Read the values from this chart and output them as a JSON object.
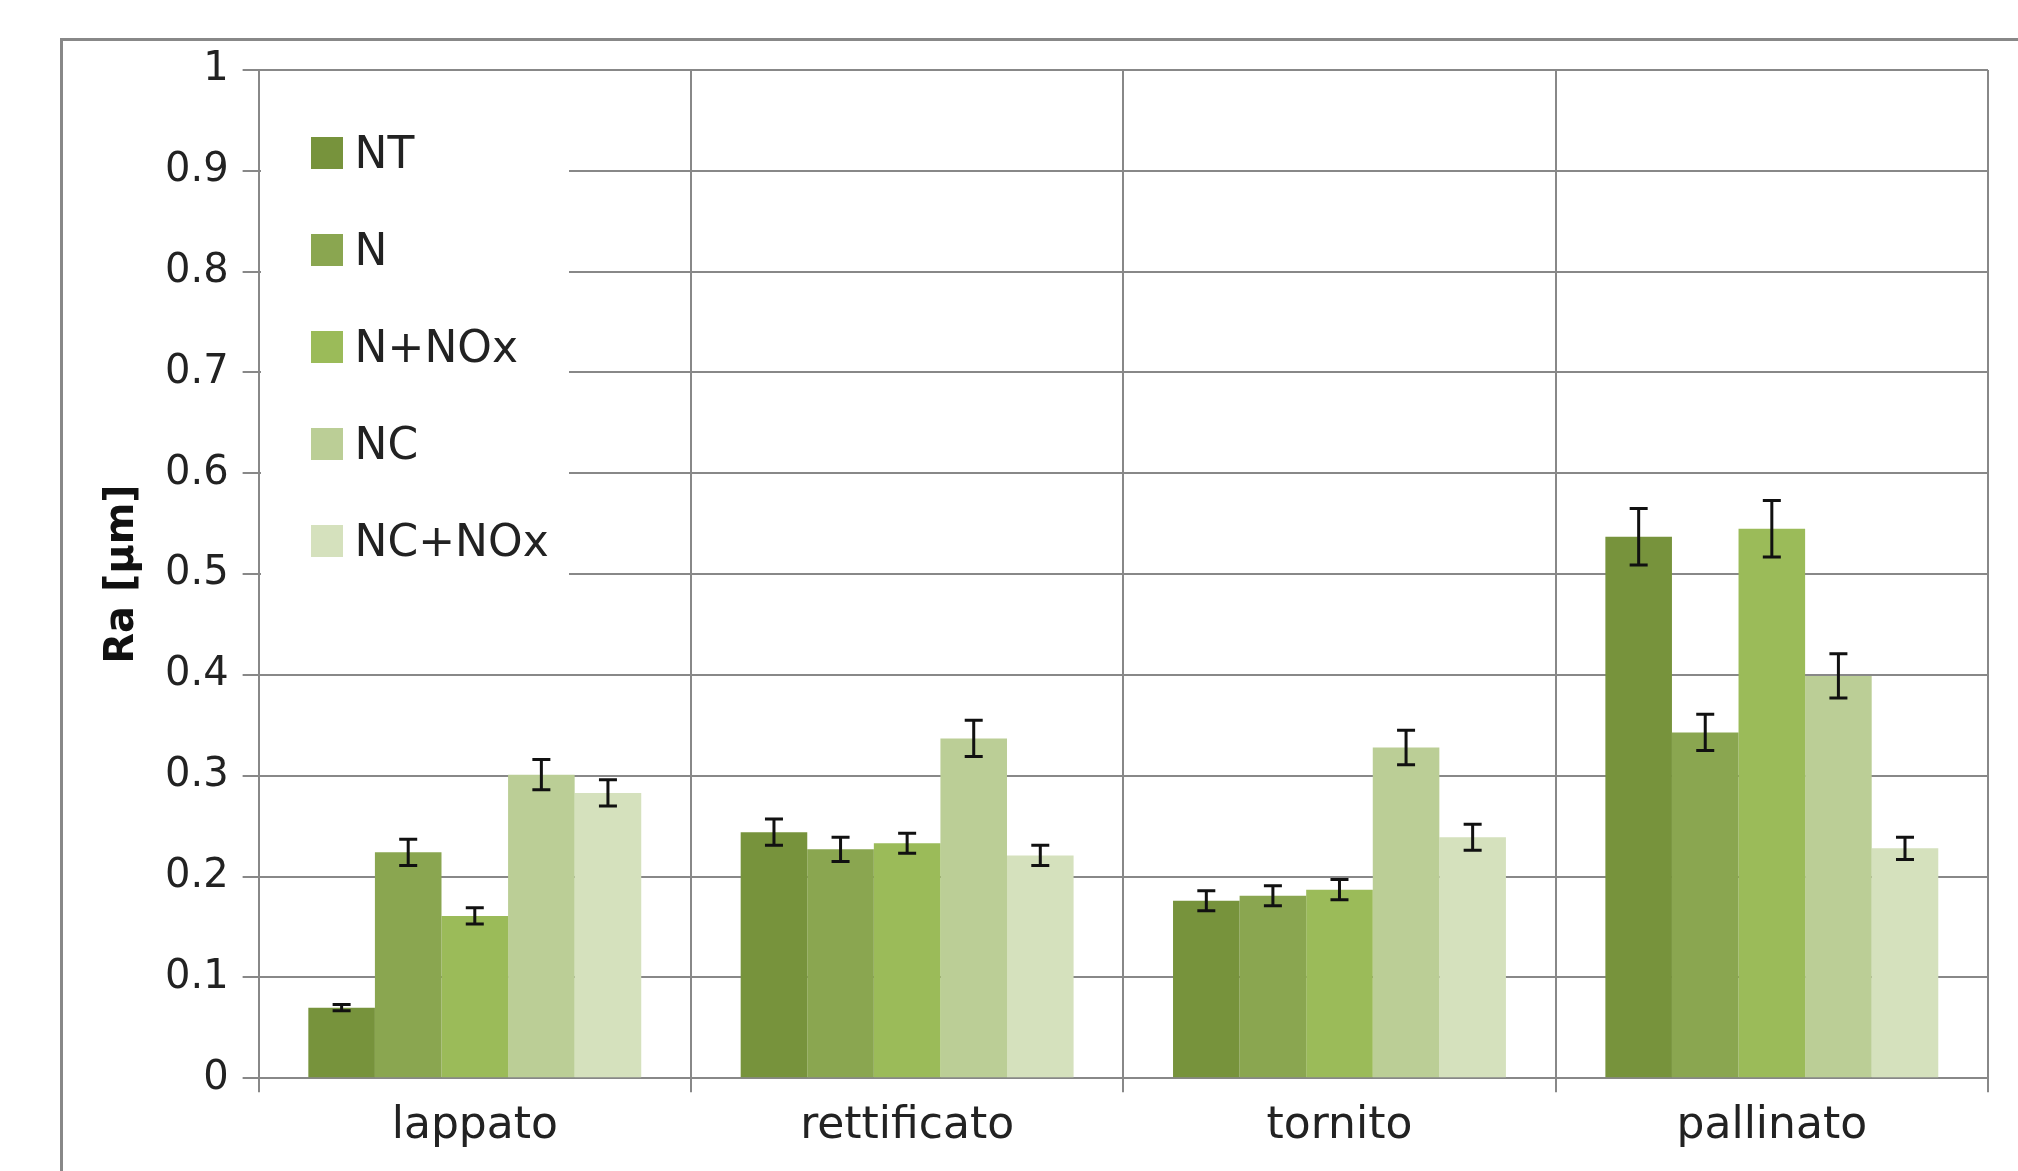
{
  "chart_data": {
    "type": "bar",
    "ylabel": "Ra [µm]",
    "categories": [
      "lappato",
      "rettificato",
      "tornito",
      "pallinato"
    ],
    "series": [
      {
        "name": "NT",
        "color": "#77933c",
        "values": [
          0.07,
          0.244,
          0.176,
          0.537
        ],
        "errors": [
          0.003,
          0.013,
          0.01,
          0.028
        ]
      },
      {
        "name": "N",
        "color": "#8aa650",
        "values": [
          0.224,
          0.227,
          0.181,
          0.343
        ],
        "errors": [
          0.013,
          0.012,
          0.01,
          0.018
        ]
      },
      {
        "name": "N+NOx",
        "color": "#9bbb59",
        "values": [
          0.161,
          0.233,
          0.187,
          0.545
        ],
        "errors": [
          0.008,
          0.01,
          0.01,
          0.028
        ]
      },
      {
        "name": "NC",
        "color": "#bbce96",
        "values": [
          0.301,
          0.337,
          0.328,
          0.399
        ],
        "errors": [
          0.015,
          0.018,
          0.017,
          0.022
        ]
      },
      {
        "name": "NC+NOx",
        "color": "#d5e1bd",
        "values": [
          0.283,
          0.221,
          0.239,
          0.228
        ],
        "errors": [
          0.013,
          0.01,
          0.013,
          0.011
        ]
      }
    ],
    "ylim": [
      0,
      1
    ],
    "yticks": [
      0,
      0.1,
      0.2,
      0.3,
      0.4,
      0.5,
      0.6,
      0.7,
      0.8,
      0.9,
      1
    ],
    "grid": true,
    "legend": "top left"
  }
}
